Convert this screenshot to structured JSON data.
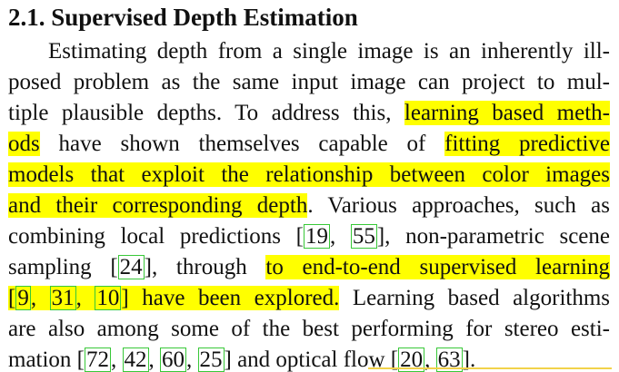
{
  "section": {
    "number": "2.1.",
    "title": "Supervised Depth Estimation"
  },
  "paragraph": {
    "l1": "Estimating depth from a single image is an inherently ill-",
    "l2": "posed problem as the same input image can project to mul-",
    "l3a": "tiple plausible depths. To address this, ",
    "l3h": "learning based meth-",
    "l4h1": "ods",
    "l4b": " have shown themselves capable of ",
    "l4h2": "fitting predictive",
    "l5h": "models that exploit the relationship between color images",
    "l6h": "and their corresponding depth",
    "l6b": ". Various approaches, such as",
    "l7a": "combining local predictions [",
    "l7sep": ", ",
    "l7b": "], non-parametric scene",
    "l8a": "sampling [",
    "l8b": "], through ",
    "l8h": "to end-to-end supervised learning",
    "l9h1": "[",
    "l9h2": ", ",
    "l9h3": ", ",
    "l9h4": "] have been explored.",
    "l9b": " Learning based algorithms",
    "l10": "are also among some of the best performing for stereo esti-",
    "l11a": "mation  [",
    "l11sep1": ", ",
    "l11sep2": ", ",
    "l11sep3": ", ",
    "l11b": "] and optical flow  [",
    "l11sep4": ", ",
    "l11c": "]."
  },
  "citations": {
    "c19": "19",
    "c55": "55",
    "c24": "24",
    "c9": "9",
    "c31": "31",
    "c10": "10",
    "c72": "72",
    "c42": "42",
    "c60": "60",
    "c25": "25",
    "c20": "20",
    "c63": "63"
  },
  "colors": {
    "highlight": "#ffff00",
    "citation_box": "#38c838",
    "underline_mark": "#f2d24a"
  }
}
